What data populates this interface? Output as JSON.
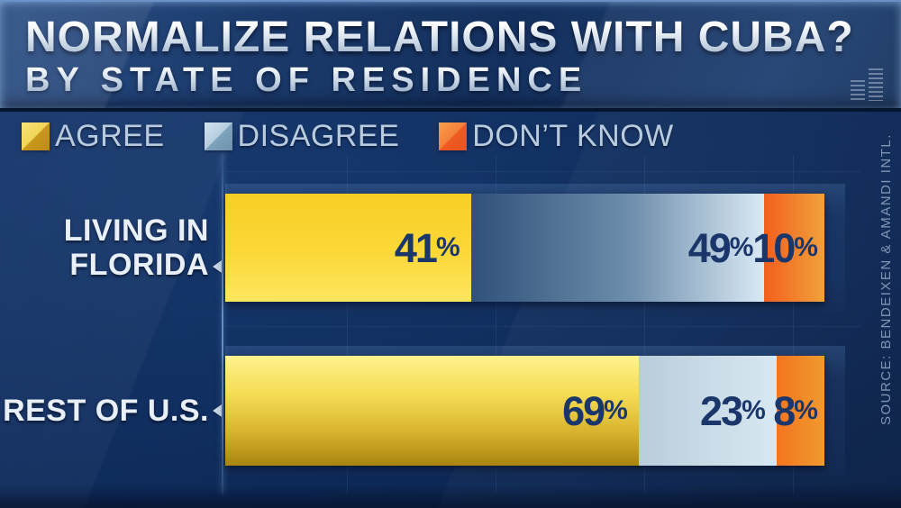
{
  "header": {
    "title": "NORMALIZE RELATIONS WITH CUBA?",
    "subtitle": "BY STATE OF RESIDENCE"
  },
  "legend": [
    {
      "key": "agree",
      "label": "AGREE"
    },
    {
      "key": "disagree",
      "label": "DISAGREE"
    },
    {
      "key": "dont_know",
      "label": "DON’T KNOW"
    }
  ],
  "source": "SOURCE: BENDEIXEN & AMANDI INTL.",
  "icons": {
    "equalizer_icon": "stacked-horizontal-bars",
    "category_pointer_icon": "left-pointing-triangle"
  },
  "colors": {
    "background": "#0C2857",
    "banner": "#1B3A6B",
    "agree": "#FBD838",
    "agree_dark": "#A98410",
    "disagree": "#6F8FAD",
    "disagree_light": "#D9E9F4",
    "dont_know": "#F25F1C",
    "value_text": "#1A366B",
    "legend_text": "#B9CCDF",
    "category_text": "#E9EFF6",
    "source_text": "#8296B4"
  },
  "chart_data": {
    "type": "bar",
    "orientation": "horizontal",
    "stacked": true,
    "title": "NORMALIZE RELATIONS WITH CUBA?",
    "subtitle": "BY STATE OF RESIDENCE",
    "categories": [
      "LIVING IN FLORIDA",
      "REST OF U.S."
    ],
    "series": [
      {
        "name": "AGREE",
        "values": [
          41,
          69
        ]
      },
      {
        "name": "DISAGREE",
        "values": [
          49,
          23
        ]
      },
      {
        "name": "DON'T KNOW",
        "values": [
          10,
          8
        ]
      }
    ],
    "unit": "%",
    "xlim": [
      0,
      100
    ],
    "grid": "faint",
    "legend_position": "top-left",
    "data_labels": "inside-right"
  },
  "bars": [
    {
      "label_lines": {
        "0": "LIVING IN",
        "1": "FLORIDA"
      },
      "segments": [
        {
          "name": "agree",
          "value": "41",
          "suffix": "%",
          "pct": 41
        },
        {
          "name": "disagree",
          "value": "49",
          "suffix": "%",
          "pct": 49
        },
        {
          "name": "dont_know",
          "value": "10",
          "suffix": "%",
          "pct": 10
        }
      ]
    },
    {
      "label_lines": {
        "0": "REST OF U.S."
      },
      "segments": [
        {
          "name": "agree",
          "value": "69",
          "suffix": "%",
          "pct": 69
        },
        {
          "name": "disagree",
          "value": "23",
          "suffix": "%",
          "pct": 23
        },
        {
          "name": "dont_know",
          "value": "8",
          "suffix": "%",
          "pct": 8
        }
      ]
    }
  ]
}
